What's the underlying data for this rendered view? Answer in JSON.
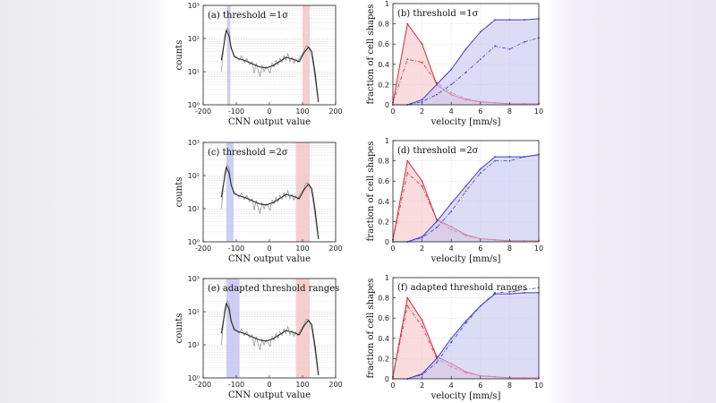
{
  "colors": {
    "red": "#d6283a",
    "red_fill": "#f6c5c8",
    "blue": "#3f3fc4",
    "blue_fill": "#c5c5f2",
    "hist": "#8a8a8a",
    "fit": "#2a2a2a",
    "grid": "#cfcfcf"
  },
  "chart_data": [
    {
      "id": "a",
      "type": "histogram-line",
      "title": "(a) threshold =1σ",
      "xlabel": "CNN output value",
      "ylabel": "counts",
      "yscale": "log",
      "xlim": [
        -200,
        200
      ],
      "ylim": [
        1,
        1000
      ],
      "xticks": [
        -200,
        -100,
        0,
        100,
        200
      ],
      "yticks": [
        {
          "v": 1,
          "label": "10⁰"
        },
        {
          "v": 10,
          "label": "10¹"
        },
        {
          "v": 100,
          "label": "10²"
        },
        {
          "v": 1000,
          "label": "10³"
        }
      ],
      "blue_band": [
        -128,
        -118
      ],
      "red_band": [
        100,
        122
      ],
      "fit": {
        "x": [
          -145,
          -130,
          -122,
          -115,
          -105,
          -90,
          -70,
          -50,
          -30,
          -10,
          10,
          30,
          50,
          70,
          90,
          105,
          118,
          128,
          138,
          148
        ],
        "y": [
          22,
          180,
          120,
          50,
          28,
          24,
          21,
          17,
          14,
          13,
          15,
          20,
          27,
          24,
          20,
          38,
          55,
          40,
          9,
          1.2
        ]
      },
      "hist": {
        "x": [
          -145,
          -135,
          -128,
          -122,
          -116,
          -108,
          -100,
          -92,
          -84,
          -76,
          -68,
          -60,
          -52,
          -46,
          -40,
          -34,
          -28,
          -22,
          -16,
          -10,
          -4,
          2,
          8,
          14,
          20,
          26,
          32,
          38,
          44,
          50,
          56,
          62,
          68,
          74,
          80,
          86,
          92,
          98,
          104,
          110,
          116,
          122,
          130,
          138,
          146
        ],
        "y": [
          10,
          120,
          210,
          170,
          60,
          30,
          28,
          22,
          30,
          19,
          25,
          16,
          20,
          9,
          18,
          11,
          7,
          15,
          10,
          14,
          12,
          9,
          18,
          14,
          22,
          16,
          25,
          19,
          30,
          22,
          35,
          20,
          27,
          18,
          24,
          19,
          26,
          32,
          40,
          58,
          60,
          45,
          22,
          6,
          1.5
        ]
      }
    },
    {
      "id": "b",
      "type": "area-line",
      "title": "(b) threshold =1σ",
      "xlabel": "velocity [mm/s]",
      "ylabel": "fraction of cell shapes",
      "xlim": [
        0,
        10
      ],
      "ylim": [
        0,
        1
      ],
      "xticks": [
        0,
        2,
        4,
        6,
        8,
        10
      ],
      "yticks": [
        0,
        0.2,
        0.4,
        0.6,
        0.8,
        1
      ],
      "x": [
        0,
        1,
        2,
        3,
        4,
        5,
        6,
        7,
        8,
        9,
        10
      ],
      "series": [
        {
          "name": "red fraction",
          "color": "red",
          "values": [
            0.02,
            0.8,
            0.6,
            0.2,
            0.1,
            0.05,
            0.03,
            0.02,
            0.01,
            0.01,
            0.01
          ]
        },
        {
          "name": "red estimate",
          "color": "red",
          "dashed": true,
          "values": [
            0.02,
            0.45,
            0.42,
            0.22,
            0.12,
            0.06,
            0.03,
            0.02,
            0.01,
            0.01,
            0.01
          ]
        },
        {
          "name": "blue fraction",
          "color": "blue",
          "values": [
            0.0,
            0.0,
            0.05,
            0.2,
            0.35,
            0.55,
            0.72,
            0.84,
            0.84,
            0.84,
            0.85
          ]
        },
        {
          "name": "blue estimate",
          "color": "blue",
          "dashed": true,
          "values": [
            0.0,
            0.0,
            0.03,
            0.1,
            0.2,
            0.32,
            0.45,
            0.58,
            0.55,
            0.62,
            0.66
          ]
        }
      ]
    },
    {
      "id": "c",
      "type": "histogram-line",
      "title": "(c) threshold =2σ",
      "xlabel": "CNN output value",
      "ylabel": "counts",
      "yscale": "log",
      "xlim": [
        -200,
        200
      ],
      "ylim": [
        1,
        1000
      ],
      "xticks": [
        -200,
        -100,
        0,
        100,
        200
      ],
      "yticks": [
        {
          "v": 1,
          "label": "10⁰"
        },
        {
          "v": 10,
          "label": "10¹"
        },
        {
          "v": 100,
          "label": "10²"
        },
        {
          "v": 1000,
          "label": "10³"
        }
      ],
      "blue_band": [
        -130,
        -108
      ],
      "red_band": [
        80,
        122
      ],
      "fit": {
        "x": [
          -145,
          -130,
          -122,
          -115,
          -105,
          -90,
          -70,
          -50,
          -30,
          -10,
          10,
          30,
          50,
          70,
          90,
          105,
          118,
          128,
          138,
          148
        ],
        "y": [
          22,
          180,
          120,
          50,
          28,
          24,
          21,
          17,
          14,
          13,
          15,
          20,
          27,
          24,
          20,
          38,
          55,
          40,
          9,
          1.2
        ]
      },
      "hist": {
        "x": [
          -145,
          -135,
          -128,
          -122,
          -116,
          -108,
          -100,
          -92,
          -84,
          -76,
          -68,
          -60,
          -52,
          -46,
          -40,
          -34,
          -28,
          -22,
          -16,
          -10,
          -4,
          2,
          8,
          14,
          20,
          26,
          32,
          38,
          44,
          50,
          56,
          62,
          68,
          74,
          80,
          86,
          92,
          98,
          104,
          110,
          116,
          122,
          130,
          138,
          146
        ],
        "y": [
          10,
          120,
          210,
          170,
          60,
          30,
          28,
          22,
          30,
          19,
          25,
          16,
          20,
          9,
          18,
          11,
          7,
          15,
          10,
          14,
          12,
          9,
          18,
          14,
          22,
          16,
          25,
          19,
          30,
          22,
          35,
          20,
          27,
          18,
          24,
          19,
          26,
          32,
          40,
          58,
          60,
          45,
          22,
          6,
          1.5
        ]
      }
    },
    {
      "id": "d",
      "type": "area-line",
      "title": "(d) threshold =2σ",
      "xlabel": "velocity [mm/s]",
      "ylabel": "fraction of cell shapes",
      "xlim": [
        0,
        10
      ],
      "ylim": [
        0,
        1
      ],
      "xticks": [
        0,
        2,
        4,
        6,
        8,
        10
      ],
      "yticks": [
        0,
        0.2,
        0.4,
        0.6,
        0.8,
        1
      ],
      "x": [
        0,
        1,
        2,
        3,
        4,
        5,
        6,
        7,
        8,
        9,
        10
      ],
      "series": [
        {
          "name": "red fraction",
          "color": "red",
          "values": [
            0.02,
            0.8,
            0.6,
            0.22,
            0.15,
            0.07,
            0.03,
            0.02,
            0.01,
            0.01,
            0.01
          ]
        },
        {
          "name": "red estimate",
          "color": "red",
          "dashed": true,
          "values": [
            0.02,
            0.68,
            0.55,
            0.22,
            0.12,
            0.06,
            0.03,
            0.02,
            0.01,
            0.01,
            0.01
          ]
        },
        {
          "name": "blue fraction",
          "color": "blue",
          "values": [
            0.0,
            0.0,
            0.05,
            0.2,
            0.38,
            0.55,
            0.72,
            0.84,
            0.84,
            0.84,
            0.86
          ]
        },
        {
          "name": "blue estimate",
          "color": "blue",
          "dashed": true,
          "values": [
            0.0,
            0.0,
            0.04,
            0.14,
            0.3,
            0.5,
            0.68,
            0.8,
            0.8,
            0.84,
            0.86
          ]
        }
      ]
    },
    {
      "id": "e",
      "type": "histogram-line",
      "title": "(e) adapted threshold ranges",
      "xlabel": "CNN output value",
      "ylabel": "counts",
      "yscale": "log",
      "xlim": [
        -200,
        200
      ],
      "ylim": [
        1,
        1000
      ],
      "xticks": [
        -200,
        -100,
        0,
        100,
        200
      ],
      "yticks": [
        {
          "v": 1,
          "label": "10⁰"
        },
        {
          "v": 10,
          "label": "10¹"
        },
        {
          "v": 100,
          "label": "10²"
        },
        {
          "v": 1000,
          "label": "10³"
        }
      ],
      "blue_band": [
        -130,
        -90
      ],
      "red_band": [
        80,
        122
      ],
      "fit": {
        "x": [
          -145,
          -130,
          -122,
          -115,
          -105,
          -90,
          -70,
          -50,
          -30,
          -10,
          10,
          30,
          50,
          70,
          90,
          105,
          118,
          128,
          138,
          148
        ],
        "y": [
          22,
          180,
          120,
          50,
          28,
          24,
          21,
          17,
          14,
          13,
          15,
          20,
          27,
          24,
          20,
          38,
          55,
          40,
          9,
          1.2
        ]
      },
      "hist": {
        "x": [
          -145,
          -135,
          -128,
          -122,
          -116,
          -108,
          -100,
          -92,
          -84,
          -76,
          -68,
          -60,
          -52,
          -46,
          -40,
          -34,
          -28,
          -22,
          -16,
          -10,
          -4,
          2,
          8,
          14,
          20,
          26,
          32,
          38,
          44,
          50,
          56,
          62,
          68,
          74,
          80,
          86,
          92,
          98,
          104,
          110,
          116,
          122,
          130,
          138,
          146
        ],
        "y": [
          10,
          120,
          210,
          170,
          60,
          30,
          28,
          22,
          30,
          19,
          25,
          16,
          20,
          9,
          18,
          11,
          7,
          15,
          10,
          14,
          12,
          9,
          18,
          14,
          22,
          16,
          25,
          19,
          30,
          22,
          35,
          20,
          27,
          18,
          24,
          19,
          26,
          32,
          40,
          58,
          60,
          45,
          22,
          6,
          1.5
        ]
      }
    },
    {
      "id": "f",
      "type": "area-line",
      "title": "(f) adapted threshold ranges",
      "xlabel": "velocity [mm/s]",
      "ylabel": "fraction of cell shapes",
      "xlim": [
        0,
        10
      ],
      "ylim": [
        0,
        1
      ],
      "xticks": [
        0,
        2,
        4,
        6,
        8,
        10
      ],
      "yticks": [
        0,
        0.2,
        0.4,
        0.6,
        0.8,
        1
      ],
      "x": [
        0,
        1,
        2,
        3,
        4,
        5,
        6,
        7,
        8,
        9,
        10
      ],
      "series": [
        {
          "name": "red fraction",
          "color": "red",
          "values": [
            0.02,
            0.8,
            0.58,
            0.22,
            0.15,
            0.07,
            0.03,
            0.02,
            0.01,
            0.01,
            0.01
          ]
        },
        {
          "name": "red estimate",
          "color": "red",
          "dashed": true,
          "values": [
            0.02,
            0.72,
            0.52,
            0.2,
            0.12,
            0.06,
            0.03,
            0.02,
            0.01,
            0.01,
            0.01
          ]
        },
        {
          "name": "blue fraction",
          "color": "blue",
          "values": [
            0.0,
            0.0,
            0.05,
            0.2,
            0.4,
            0.57,
            0.72,
            0.84,
            0.84,
            0.85,
            0.85
          ]
        },
        {
          "name": "blue estimate",
          "color": "blue",
          "dashed": true,
          "values": [
            0.0,
            0.0,
            0.04,
            0.16,
            0.36,
            0.55,
            0.72,
            0.85,
            0.86,
            0.88,
            0.9
          ]
        }
      ]
    }
  ]
}
